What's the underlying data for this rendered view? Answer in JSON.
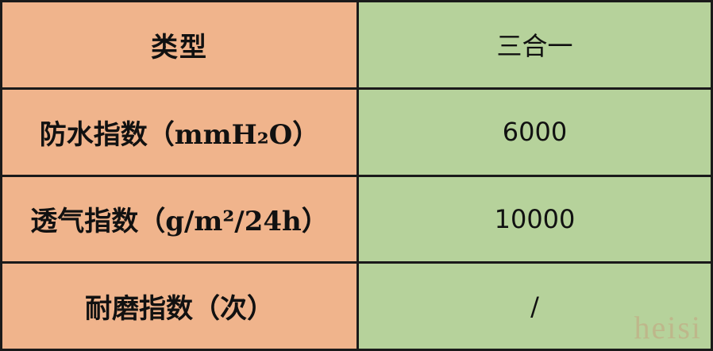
{
  "table": {
    "rows": [
      {
        "label": "类型",
        "value": "三合一"
      },
      {
        "label": "防水指数（mmH₂O）",
        "value": "6000"
      },
      {
        "label": "透气指数（g/m²/24h）",
        "value": "10000"
      },
      {
        "label": "耐磨指数（次）",
        "value": "/"
      }
    ]
  },
  "colors": {
    "label_bg": "#f0b48c",
    "value_bg": "#b6d29b",
    "border": "#1a1a1a"
  },
  "watermark": "heisi"
}
